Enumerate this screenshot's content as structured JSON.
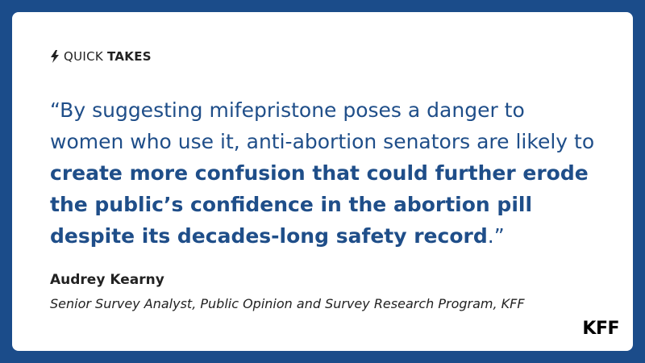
{
  "header": {
    "label_regular": "QUICK",
    "label_bold": "TAKES"
  },
  "quote": {
    "parts": [
      {
        "text": "“By suggesting mifepristone poses a danger to women who use it, anti-abortion senators are likely to ",
        "bold": false
      },
      {
        "text": "create more confusion that could further erode the public’s confidence in the abortion pill despite its decades-long safety record",
        "bold": true
      },
      {
        "text": ".”",
        "bold": false
      }
    ]
  },
  "author": {
    "name": "Audrey Kearny",
    "role": "Senior Survey Analyst, Public Opinion and Survey Research Program, KFF"
  },
  "logo": "KFF"
}
